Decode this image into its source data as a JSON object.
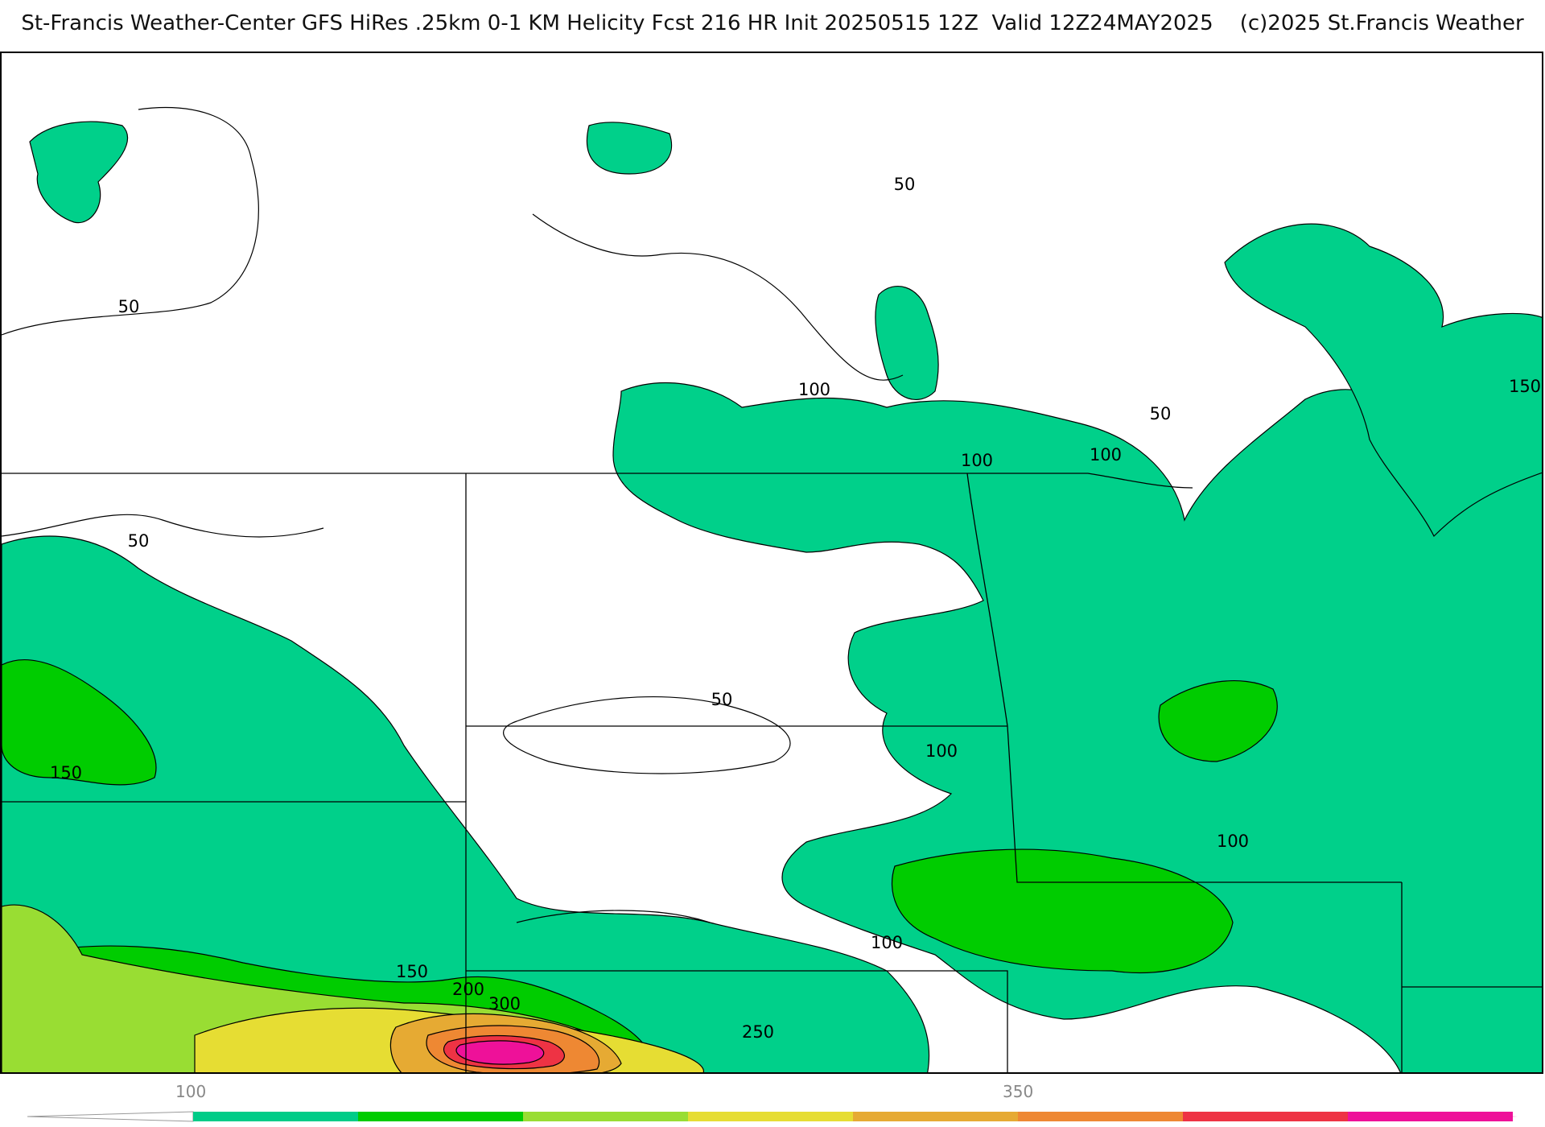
{
  "header": {
    "title": "St-Francis Weather-Center GFS HiRes .25km 0-1 KM Helicity Fcst 216 HR Init 20250515 12Z  Valid 12Z24MAY2025    (c)2025 St.Francis Weather"
  },
  "map": {
    "contour_labels": [
      "50",
      "50",
      "50",
      "50",
      "50",
      "100",
      "100",
      "100",
      "100",
      "100",
      "100",
      "150",
      "150",
      "150",
      "200",
      "300",
      "250"
    ]
  },
  "colorbar": {
    "tick_labels": [
      "100",
      "350"
    ],
    "colors": [
      "#00cc88",
      "#00cc00",
      "#99dd33",
      "#e6dd33",
      "#e6aa33",
      "#ee8833",
      "#ee3344",
      "#ee1199"
    ]
  }
}
